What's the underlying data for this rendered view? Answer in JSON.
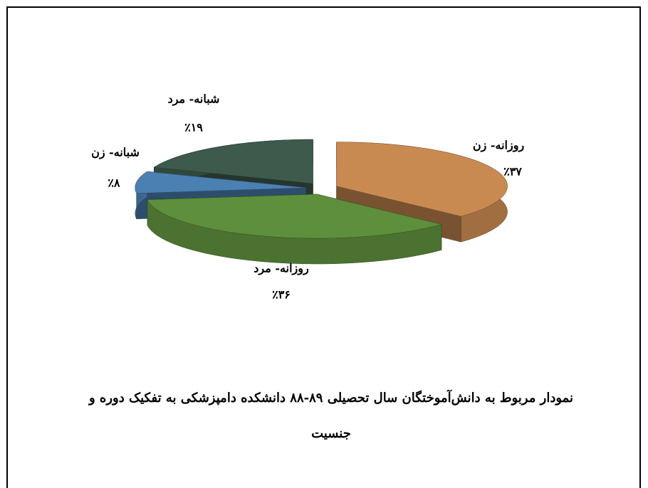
{
  "chart_data": {
    "type": "pie3d",
    "title": "نمودار مربوط به دانش‌آموختگان سال تحصیلی ۸۹-۸۸ دانشکده دامپزشکی به تفکیک دوره و جنسیت",
    "categories": [
      "روزانه- زن",
      "روزانه- مرد",
      "شبانه- زن",
      "شبانه- مرد"
    ],
    "values": [
      37,
      36,
      8,
      19
    ],
    "value_labels": [
      "٪۳۷",
      "٪۳۶",
      "٪۸",
      "٪۱۹"
    ],
    "colors": [
      "#c98a52",
      "#5e8f3c",
      "#4b80b2",
      "#3d5a4c"
    ]
  }
}
